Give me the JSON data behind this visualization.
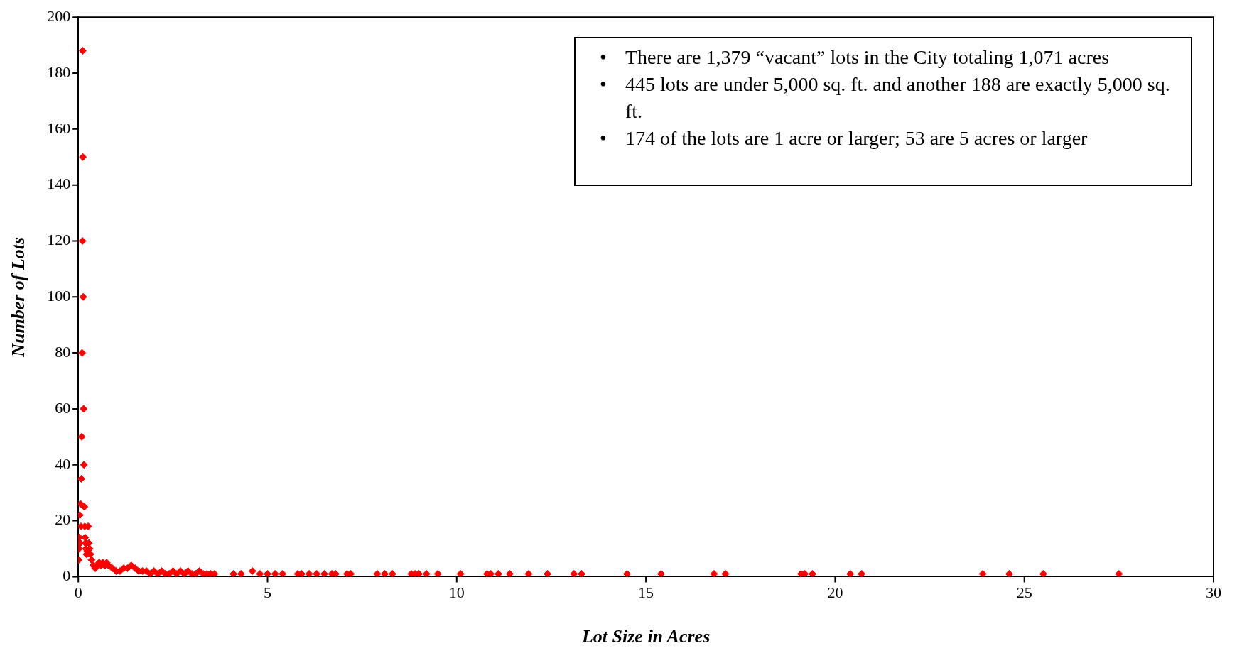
{
  "chart_data": {
    "type": "scatter",
    "xlabel": "Lot Size in Acres",
    "ylabel": "Number of Lots",
    "annotations": [
      "• There are 1,379 “vacant” lots in the City totaling 1,071 acres",
      "• 445 lots are under 5,000 sq. ft. and another 188 are exactly 5,000 sq. ft.",
      "• 174 of the lots are 1 acre or larger; 53 are 5 acres or larger"
    ],
    "xlim": [
      0,
      30
    ],
    "xticks": [
      0,
      5,
      10,
      15,
      20,
      25,
      30
    ],
    "ylim": [
      0,
      200
    ],
    "yticks": [
      0,
      20,
      40,
      60,
      80,
      100,
      120,
      140,
      160,
      180,
      200
    ],
    "grid": false,
    "legend": false,
    "marker": "diamond",
    "series": [
      {
        "color": "#ff0000",
        "x": [
          0.01,
          0.02,
          0.03,
          0.04,
          0.05,
          0.06,
          0.07,
          0.08,
          0.09,
          0.1,
          0.11,
          0.115,
          0.12,
          0.13,
          0.14,
          0.15,
          0.16,
          0.17,
          0.18,
          0.19,
          0.2,
          0.22,
          0.24,
          0.26,
          0.28,
          0.3,
          0.32,
          0.35,
          0.4,
          0.45,
          0.5,
          0.55,
          0.6,
          0.65,
          0.7,
          0.75,
          0.8,
          0.9,
          1.0,
          1.1,
          1.2,
          1.3,
          1.4,
          1.5,
          1.6,
          1.7,
          1.8,
          1.9,
          2.0,
          2.1,
          2.2,
          2.3,
          2.4,
          2.5,
          2.6,
          2.7,
          2.8,
          2.9,
          3.0,
          3.1,
          3.2,
          3.3,
          3.4,
          3.5,
          3.6,
          4.1,
          4.3,
          4.6,
          4.8,
          5.0,
          5.2,
          5.4,
          5.8,
          5.9,
          6.1,
          6.3,
          6.5,
          6.7,
          6.8,
          7.1,
          7.2,
          7.9,
          8.1,
          8.3,
          8.8,
          8.9,
          9.0,
          9.2,
          9.5,
          10.1,
          10.8,
          10.9,
          11.1,
          11.4,
          11.9,
          12.4,
          13.1,
          13.3,
          14.5,
          15.4,
          16.8,
          17.1,
          19.1,
          19.2,
          19.4,
          20.4,
          20.7,
          23.9,
          24.6,
          25.5,
          27.5
        ],
        "values": [
          6,
          10,
          14,
          22,
          12,
          26,
          18,
          35,
          50,
          80,
          120,
          188,
          150,
          100,
          60,
          40,
          25,
          18,
          14,
          12,
          10,
          8,
          9,
          18,
          12,
          10,
          8,
          6,
          4,
          3,
          4,
          5,
          4,
          5,
          4,
          5,
          4,
          3,
          2,
          2,
          3,
          3,
          4,
          3,
          2,
          2,
          2,
          1,
          2,
          1,
          2,
          1,
          1,
          2,
          1,
          2,
          1,
          2,
          1,
          1,
          2,
          1,
          1,
          1,
          1,
          1,
          1,
          2,
          1,
          1,
          1,
          1,
          1,
          1,
          1,
          1,
          1,
          1,
          1,
          1,
          1,
          1,
          1,
          1,
          1,
          1,
          1,
          1,
          1,
          1,
          1,
          1,
          1,
          1,
          1,
          1,
          1,
          1,
          1,
          1,
          1,
          1,
          1,
          1,
          1,
          1,
          1,
          1,
          1,
          1,
          1
        ]
      }
    ]
  }
}
